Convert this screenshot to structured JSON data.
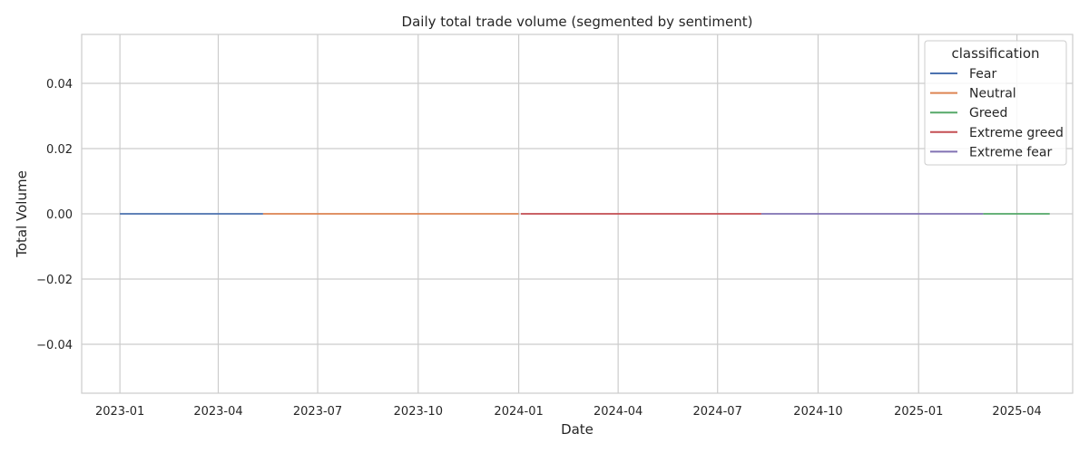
{
  "chart_data": {
    "type": "line",
    "title": "Daily total trade volume (segmented by sentiment)",
    "xlabel": "Date",
    "ylabel": "Total Volume",
    "xlim": [
      "2022-11-27",
      "2025-05-22"
    ],
    "ylim": [
      -0.055,
      0.055
    ],
    "x_ticks": [
      {
        "date": "2023-01-01",
        "label": "2023-01"
      },
      {
        "date": "2023-04-01",
        "label": "2023-04"
      },
      {
        "date": "2023-07-01",
        "label": "2023-07"
      },
      {
        "date": "2023-10-01",
        "label": "2023-10"
      },
      {
        "date": "2024-01-01",
        "label": "2024-01"
      },
      {
        "date": "2024-04-01",
        "label": "2024-04"
      },
      {
        "date": "2024-07-01",
        "label": "2024-07"
      },
      {
        "date": "2024-10-01",
        "label": "2024-10"
      },
      {
        "date": "2025-01-01",
        "label": "2025-01"
      },
      {
        "date": "2025-04-01",
        "label": "2025-04"
      }
    ],
    "y_ticks": [
      {
        "value": 0.04,
        "label": "0.04"
      },
      {
        "value": 0.02,
        "label": "0.02"
      },
      {
        "value": 0.0,
        "label": "0.00"
      },
      {
        "value": -0.02,
        "label": "−0.02"
      },
      {
        "value": -0.04,
        "label": "−0.04"
      }
    ],
    "grid": true,
    "legend": {
      "title": "classification",
      "placement": "top-right"
    },
    "series": [
      {
        "name": "Fear",
        "color": "#4c72b0",
        "x": [
          "2023-01-01",
          "2023-05-12"
        ],
        "y": [
          0,
          0
        ]
      },
      {
        "name": "Neutral",
        "color": "#dd8452",
        "x": [
          "2023-05-12",
          "2024-01-01"
        ],
        "y": [
          0,
          0
        ]
      },
      {
        "name": "Greed",
        "color": "#55a868",
        "x": [
          "2024-01-01",
          "2024-01-03",
          "2025-03-01",
          "2025-05-01"
        ],
        "y": [
          0,
          null,
          0,
          0
        ]
      },
      {
        "name": "Extreme greed",
        "color": "#c44e52",
        "x": [
          "2024-01-03",
          "2024-08-10"
        ],
        "y": [
          0,
          0
        ]
      },
      {
        "name": "Extreme fear",
        "color": "#8172b3",
        "x": [
          "2024-08-10",
          "2025-03-01"
        ],
        "y": [
          0,
          0
        ]
      }
    ]
  }
}
